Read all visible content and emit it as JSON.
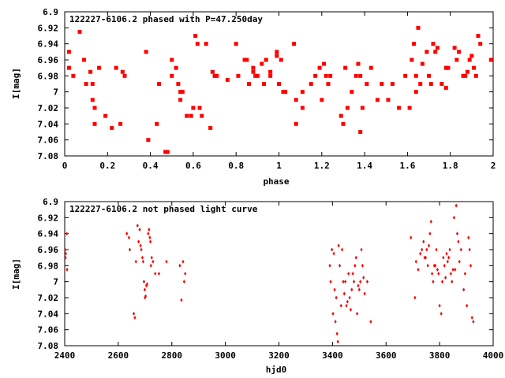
{
  "chart_data": [
    {
      "type": "scatter",
      "title": "122227-6106.2 phased with P=47.250day",
      "xlabel": "phase",
      "ylabel": "I[mag]",
      "xlim": [
        0,
        2
      ],
      "ylim": [
        7.08,
        6.9
      ],
      "y_inverted": true,
      "grid": false,
      "legend": "none",
      "marker_color": "#ff0000",
      "xticks": [
        "0",
        "0.2",
        "0.4",
        "0.6",
        "0.8",
        "1",
        "1.2",
        "1.4",
        "1.6",
        "1.8",
        "2"
      ],
      "xtick_values": [
        0,
        0.2,
        0.4,
        0.6,
        0.8,
        1,
        1.2,
        1.4,
        1.6,
        1.8,
        2
      ],
      "yticks": [
        "6.9",
        "6.92",
        "6.94",
        "6.96",
        "6.98",
        "7",
        "7.02",
        "7.04",
        "7.06",
        "7.08"
      ],
      "ytick_values": [
        6.9,
        6.92,
        6.94,
        6.96,
        6.98,
        7.0,
        7.02,
        7.04,
        7.06,
        7.08
      ],
      "x": [
        0.02,
        0.02,
        0.04,
        0.07,
        0.09,
        0.1,
        0.12,
        0.13,
        0.13,
        0.14,
        0.14,
        0.16,
        0.19,
        0.22,
        0.24,
        0.26,
        0.27,
        0.28,
        0.38,
        0.39,
        0.43,
        0.44,
        0.47,
        0.48,
        0.5,
        0.5,
        0.52,
        0.53,
        0.54,
        0.54,
        0.55,
        0.57,
        0.59,
        0.6,
        0.61,
        0.62,
        0.63,
        0.64,
        0.66,
        0.68,
        0.69,
        0.7,
        0.71,
        0.76,
        0.8,
        0.81,
        0.84,
        0.85,
        0.86,
        0.88,
        0.88,
        0.89,
        0.9,
        0.92,
        0.93,
        0.94,
        0.96,
        0.96,
        0.99,
        0.99,
        1.0,
        1.01,
        1.02,
        1.03,
        1.07,
        1.08,
        1.08,
        1.11,
        1.11,
        1.15,
        1.17,
        1.19,
        1.2,
        1.21,
        1.22,
        1.23,
        1.24,
        1.29,
        1.3,
        1.31,
        1.32,
        1.34,
        1.36,
        1.37,
        1.38,
        1.38,
        1.39,
        1.41,
        1.43,
        1.46,
        1.48,
        1.51,
        1.53,
        1.56,
        1.59,
        1.61,
        1.62,
        1.63,
        1.64,
        1.64,
        1.65,
        1.66,
        1.67,
        1.69,
        1.7,
        1.71,
        1.72,
        1.73,
        1.74,
        1.76,
        1.78,
        1.78,
        1.79,
        1.82,
        1.83,
        1.84,
        1.86,
        1.87,
        1.88,
        1.89,
        1.9,
        1.91,
        1.92,
        1.93,
        1.94,
        1.99
      ],
      "y": [
        6.97,
        6.95,
        6.98,
        6.925,
        6.96,
        6.99,
        6.975,
        6.99,
        7.01,
        7.04,
        7.02,
        6.97,
        7.03,
        7.045,
        6.97,
        7.04,
        6.975,
        6.98,
        6.95,
        7.06,
        7.04,
        6.99,
        7.075,
        7.075,
        6.98,
        6.96,
        6.97,
        6.99,
        7.0,
        7.01,
        7.0,
        7.03,
        7.03,
        7.02,
        6.93,
        6.94,
        7.02,
        7.03,
        6.94,
        7.045,
        6.975,
        6.98,
        6.98,
        6.985,
        6.94,
        6.98,
        6.96,
        6.96,
        6.99,
        6.97,
        6.975,
        6.98,
        6.98,
        6.965,
        6.99,
        6.96,
        6.975,
        6.98,
        6.95,
        6.955,
        6.99,
        6.96,
        7.0,
        7.0,
        6.94,
        7.04,
        7.01,
        7.02,
        7.0,
        6.99,
        6.98,
        6.97,
        7.01,
        6.965,
        6.98,
        6.99,
        6.98,
        7.03,
        7.04,
        6.97,
        7.02,
        7.0,
        6.98,
        6.965,
        6.98,
        7.05,
        7.02,
        6.99,
        6.97,
        7.01,
        6.99,
        7.01,
        6.99,
        7.02,
        6.98,
        7.02,
        6.96,
        6.94,
        7.0,
        6.98,
        6.92,
        6.99,
        6.965,
        6.95,
        6.98,
        6.99,
        6.94,
        6.95,
        6.945,
        6.99,
        6.995,
        6.97,
        6.97,
        6.945,
        6.96,
        6.95,
        6.98,
        6.98,
        6.975,
        6.96,
        6.955,
        6.97,
        6.98,
        6.93,
        6.94,
        6.96
      ],
      "marker": "filled-square"
    },
    {
      "type": "scatter",
      "title": "122227-6106.2 not phased light curve",
      "xlabel": "hjd0",
      "ylabel": "I[mag]",
      "xlim": [
        2400,
        4000
      ],
      "ylim": [
        7.08,
        6.9
      ],
      "y_inverted": true,
      "grid": false,
      "legend": "none",
      "marker_color": "#ff0000",
      "xticks": [
        "2400",
        "2600",
        "2800",
        "3000",
        "3200",
        "3400",
        "3600",
        "3800",
        "4000"
      ],
      "xtick_values": [
        2400,
        2600,
        2800,
        3000,
        3200,
        3400,
        3600,
        3800,
        4000
      ],
      "yticks": [
        "6.9",
        "6.92",
        "6.94",
        "6.96",
        "6.98",
        "7",
        "7.02",
        "7.04",
        "7.06",
        "7.08"
      ],
      "ytick_values": [
        6.9,
        6.92,
        6.94,
        6.96,
        6.98,
        7.0,
        7.02,
        7.04,
        7.06,
        7.08
      ],
      "x": [
        2402,
        2403,
        2404,
        2408,
        2409,
        2632,
        2640,
        2643,
        2658,
        2662,
        2666,
        2672,
        2676,
        2680,
        2683,
        2686,
        2690,
        2693,
        2696,
        2699,
        2700,
        2702,
        2705,
        2708,
        2712,
        2715,
        2718,
        2720,
        2722,
        2725,
        2730,
        2738,
        2752,
        2780,
        2830,
        2836,
        2842,
        2846,
        2850,
        3390,
        3393,
        3398,
        3402,
        3405,
        3408,
        3411,
        3414,
        3417,
        3420,
        3423,
        3427,
        3432,
        3436,
        3440,
        3444,
        3448,
        3452,
        3456,
        3460,
        3464,
        3468,
        3472,
        3476,
        3480,
        3484,
        3488,
        3492,
        3496,
        3500,
        3504,
        3508,
        3512,
        3516,
        3520,
        3530,
        3543,
        3693,
        3708,
        3712,
        3720,
        3728,
        3734,
        3740,
        3744,
        3748,
        3752,
        3756,
        3760,
        3764,
        3768,
        3772,
        3776,
        3780,
        3784,
        3788,
        3792,
        3796,
        3800,
        3806,
        3810,
        3814,
        3818,
        3822,
        3826,
        3830,
        3834,
        3838,
        3842,
        3846,
        3850,
        3854,
        3858,
        3862,
        3866,
        3870,
        3874,
        3880,
        3890,
        3895,
        3902,
        3908,
        3912,
        3916,
        3921,
        3926
      ],
      "y": [
        6.96,
        6.97,
        6.965,
        6.94,
        6.985,
        6.94,
        6.945,
        6.96,
        7.04,
        7.045,
        6.975,
        6.93,
        6.95,
        6.935,
        6.955,
        6.96,
        6.97,
        6.975,
        7.0,
        7.01,
        7.02,
        7.018,
        7.005,
        7.003,
        6.94,
        6.935,
        6.945,
        6.95,
        6.98,
        6.97,
        6.975,
        6.99,
        6.99,
        6.975,
        6.98,
        7.023,
        6.975,
        7.0,
        6.99,
        6.98,
        7.0,
        6.96,
        7.04,
        6.965,
        7.01,
        7.05,
        7.02,
        7.065,
        7.075,
        6.955,
        6.98,
        7.03,
        6.96,
        7.0,
        7.015,
        7.0,
        7.03,
        7.025,
        6.99,
        7.02,
        7.035,
        7.01,
        6.99,
        7.0,
        6.98,
        6.97,
        7.04,
        7.005,
        7.01,
        7.0,
        6.96,
        6.98,
        6.995,
        7.015,
        7.0,
        7.05,
        6.945,
        7.02,
        6.975,
        6.985,
        6.965,
        6.96,
        6.95,
        6.97,
        6.97,
        6.96,
        6.98,
        6.955,
        6.94,
        6.925,
        6.99,
        7.0,
        6.98,
        6.98,
        6.96,
        6.985,
        6.99,
        7.03,
        7.04,
        7.0,
        6.97,
        6.98,
        6.995,
        6.965,
        6.975,
        6.97,
        6.96,
        6.99,
        7.0,
        6.985,
        6.92,
        6.985,
        6.905,
        6.94,
        6.95,
        6.975,
        6.96,
        7.01,
        6.99,
        7.03,
        6.945,
        6.96,
        6.98,
        7.045,
        7.05
      ]
    }
  ]
}
